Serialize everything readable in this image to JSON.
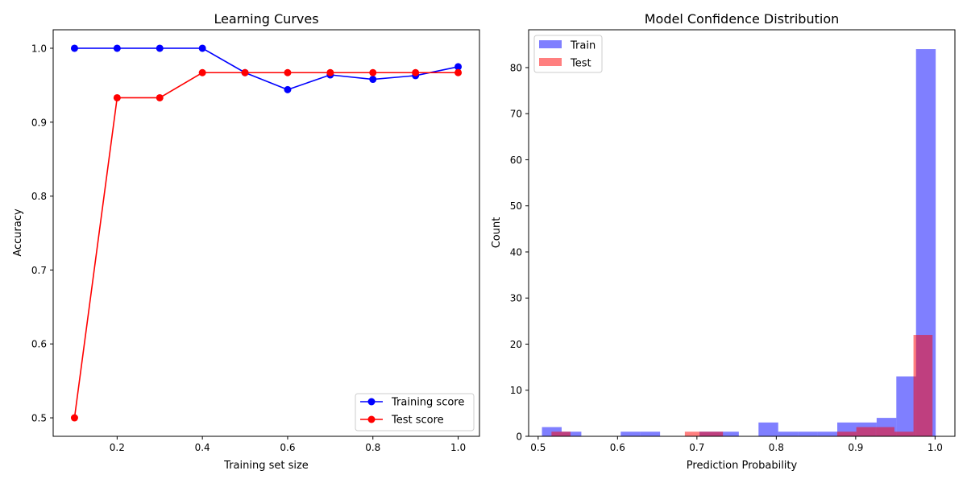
{
  "chart_data": [
    {
      "type": "line",
      "title": "Learning Curves",
      "xlabel": "Training set size",
      "ylabel": "Accuracy",
      "xlim": [
        0.05,
        1.05
      ],
      "ylim": [
        0.475,
        1.025
      ],
      "xticks": [
        0.2,
        0.4,
        0.6,
        0.8,
        1.0
      ],
      "xtick_labels": [
        "0.2",
        "0.4",
        "0.6",
        "0.8",
        "1.0"
      ],
      "yticks": [
        0.5,
        0.6,
        0.7,
        0.8,
        0.9,
        1.0
      ],
      "ytick_labels": [
        "0.5",
        "0.6",
        "0.7",
        "0.8",
        "0.9",
        "1.0"
      ],
      "x": [
        0.1,
        0.2,
        0.3,
        0.4,
        0.5,
        0.6,
        0.7,
        0.8,
        0.9,
        1.0
      ],
      "series": [
        {
          "name": "Training score",
          "color": "#0000ff",
          "values": [
            1.0,
            1.0,
            1.0,
            1.0,
            0.967,
            0.944,
            0.964,
            0.958,
            0.963,
            0.975
          ]
        },
        {
          "name": "Test score",
          "color": "#ff0000",
          "values": [
            0.5,
            0.933,
            0.933,
            0.967,
            0.967,
            0.967,
            0.967,
            0.967,
            0.967,
            0.967
          ]
        }
      ],
      "legend": "lower-right",
      "grid": false
    },
    {
      "type": "bar",
      "subtype": "histogram",
      "title": "Model Confidence Distribution",
      "xlabel": "Prediction Probability",
      "ylabel": "Count",
      "xlim": [
        0.488,
        1.025
      ],
      "ylim": [
        0,
        88.2
      ],
      "xticks": [
        0.5,
        0.6,
        0.7,
        0.8,
        0.9,
        1.0
      ],
      "xtick_labels": [
        "0.5",
        "0.6",
        "0.7",
        "0.8",
        "0.9",
        "1.0"
      ],
      "yticks": [
        0,
        10,
        20,
        30,
        40,
        50,
        60,
        70,
        80
      ],
      "ytick_labels": [
        "0",
        "10",
        "20",
        "30",
        "40",
        "50",
        "60",
        "70",
        "80"
      ],
      "series": [
        {
          "name": "Train",
          "color": "#0000ff",
          "opacity": 0.5,
          "bin_edges": [
            0.5048,
            0.5296,
            0.5544,
            0.5792,
            0.604,
            0.6288,
            0.6536,
            0.6784,
            0.7032,
            0.728,
            0.7528,
            0.7776,
            0.8024,
            0.8272,
            0.852,
            0.8768,
            0.9016,
            0.9264,
            0.9512,
            0.976,
            1.0008
          ],
          "counts": [
            2,
            1,
            0,
            0,
            1,
            1,
            0,
            0,
            1,
            1,
            0,
            3,
            1,
            1,
            1,
            3,
            3,
            4,
            13,
            84
          ]
        },
        {
          "name": "Test",
          "color": "#ff0000",
          "opacity": 0.5,
          "bin_edges": [
            0.5168,
            0.5408,
            0.5648,
            0.5888,
            0.6128,
            0.6368,
            0.6608,
            0.6848,
            0.7088,
            0.7328,
            0.7568,
            0.7808,
            0.8048,
            0.8288,
            0.8528,
            0.8768,
            0.9008,
            0.9248,
            0.9488,
            0.9728,
            0.9968
          ],
          "counts": [
            1,
            0,
            0,
            0,
            0,
            0,
            0,
            1,
            1,
            0,
            0,
            0,
            0,
            0,
            0,
            1,
            2,
            2,
            1,
            22
          ]
        }
      ],
      "legend": "top-left",
      "grid": false
    }
  ]
}
